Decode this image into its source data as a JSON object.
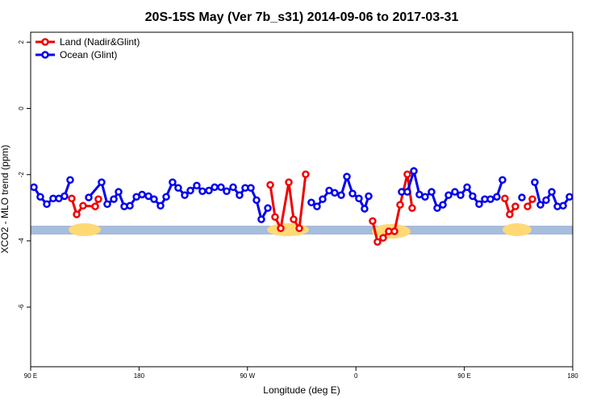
{
  "chart_data": {
    "type": "line",
    "title": "20S-15S May (Ver 7b_s31)   2014-09-06 to 2017-03-31",
    "x_label": "Longitude (deg E)",
    "y_label": "XCO2 - MLO trend (ppm)",
    "xlim": [
      90,
      540
    ],
    "xticks": [
      {
        "value": 90,
        "label": "90 E"
      },
      {
        "value": 180,
        "label": "180"
      },
      {
        "value": 270,
        "label": "90 W"
      },
      {
        "value": 360,
        "label": "0"
      },
      {
        "value": 450,
        "label": "90 E"
      },
      {
        "value": 540,
        "label": "180"
      }
    ],
    "ylim": [
      -7.8,
      2.3
    ],
    "yticks": [
      2,
      0,
      -2,
      -4,
      -6
    ],
    "legend": "top-left",
    "series": [
      {
        "name": "Land (Nadir&Glint)",
        "color": "#ee0000",
        "x": [
          124.1,
          128.2,
          133.5,
          143.6,
          146.2,
          null,
          288.9,
          292.9,
          297.6,
          304.3,
          308.3,
          313.0,
          318.3,
          null,
          373.9,
          377.9,
          382.6,
          387.3,
          392.0,
          396.7,
          402.7,
          406.7,
          null,
          483.7,
          487.7,
          492.4,
          null,
          502.5,
          506.5
        ],
        "values": [
          -2.72,
          -3.2,
          -2.94,
          -2.96,
          -2.74,
          null,
          -2.31,
          -3.28,
          -3.62,
          -2.23,
          -3.35,
          -3.62,
          -1.99,
          null,
          -3.4,
          -4.03,
          -3.91,
          -3.71,
          -3.71,
          -2.91,
          -1.99,
          -3.01,
          null,
          -2.72,
          -3.2,
          -2.96,
          null,
          -2.96,
          -2.74
        ]
      },
      {
        "name": "Ocean (Glint)",
        "color": "#0000ee",
        "x": [
          92.7,
          98.0,
          103.4,
          108.7,
          113.4,
          118.1,
          122.8,
          null,
          138.2,
          148.9,
          153.6,
          159.0,
          163.0,
          167.7,
          172.4,
          177.8,
          182.5,
          187.8,
          192.4,
          197.8,
          202.5,
          207.8,
          212.5,
          217.9,
          222.6,
          227.9,
          232.6,
          238.0,
          242.7,
          248.0,
          252.7,
          258.1,
          263.4,
          268.1,
          272.8,
          277.5,
          281.5,
          286.9,
          null,
          323.0,
          327.7,
          332.4,
          337.8,
          342.4,
          347.8,
          352.5,
          357.2,
          362.5,
          367.2,
          370.6,
          null,
          398.0,
          402.7,
          408.1,
          412.7,
          417.4,
          422.8,
          427.5,
          432.2,
          436.9,
          442.2,
          446.9,
          452.3,
          456.9,
          462.3,
          467.0,
          471.7,
          477.0,
          481.7,
          null,
          497.8,
          null,
          508.5,
          513.2,
          517.9,
          522.6,
          527.3,
          532.0,
          537.3
        ],
        "values": [
          -2.38,
          -2.67,
          -2.89,
          -2.72,
          -2.72,
          -2.65,
          -2.16,
          null,
          -2.69,
          -2.23,
          -2.89,
          -2.74,
          -2.52,
          -2.96,
          -2.94,
          -2.67,
          -2.6,
          -2.65,
          -2.74,
          -2.94,
          -2.67,
          -2.23,
          -2.4,
          -2.62,
          -2.48,
          -2.33,
          -2.5,
          -2.48,
          -2.38,
          -2.38,
          -2.5,
          -2.38,
          -2.62,
          -2.4,
          -2.4,
          -2.77,
          -3.35,
          -3.01,
          null,
          -2.84,
          -2.96,
          -2.74,
          -2.48,
          -2.55,
          -2.62,
          -2.06,
          -2.57,
          -2.72,
          -3.03,
          -2.65,
          null,
          -2.52,
          -2.52,
          -1.89,
          -2.6,
          -2.67,
          -2.52,
          -3.01,
          -2.91,
          -2.62,
          -2.52,
          -2.62,
          -2.38,
          -2.65,
          -2.89,
          -2.74,
          -2.74,
          -2.67,
          -2.16,
          null,
          -2.69,
          null,
          -2.23,
          -2.91,
          -2.77,
          -2.52,
          -2.96,
          -2.94,
          -2.67
        ]
      }
    ]
  }
}
